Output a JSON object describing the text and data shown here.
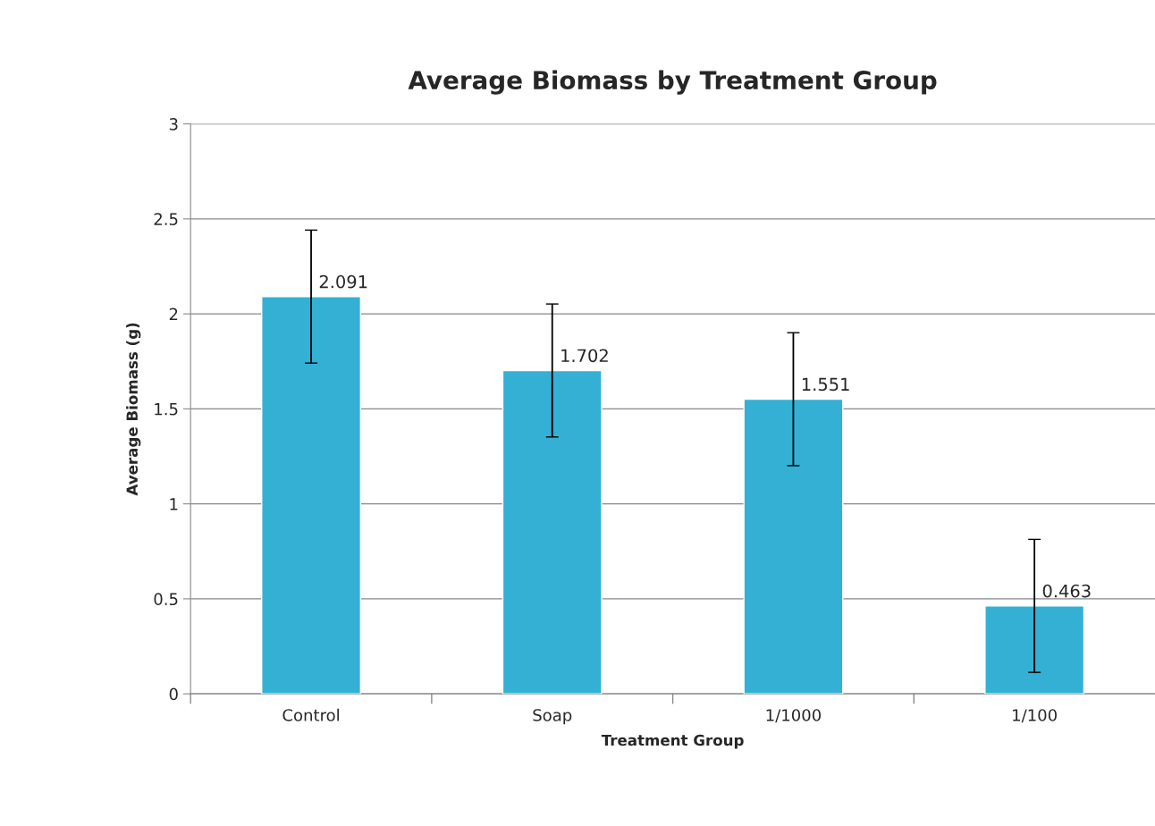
{
  "chart_data": {
    "type": "bar",
    "title": "Average Biomass by Treatment Group",
    "xlabel": "Treatment Group",
    "ylabel": "Average Biomass (g)",
    "categories": [
      "Control",
      "Soap",
      "1/1000",
      "1/100"
    ],
    "values": [
      2.091,
      1.702,
      1.551,
      0.463
    ],
    "errors": [
      0.35,
      0.35,
      0.35,
      0.35
    ],
    "color": "#33b0d4",
    "ylim": [
      0,
      3
    ],
    "yticks": [
      0,
      0.5,
      1,
      1.5,
      2,
      2.5,
      3
    ],
    "grid": "y",
    "data_labels": true
  }
}
